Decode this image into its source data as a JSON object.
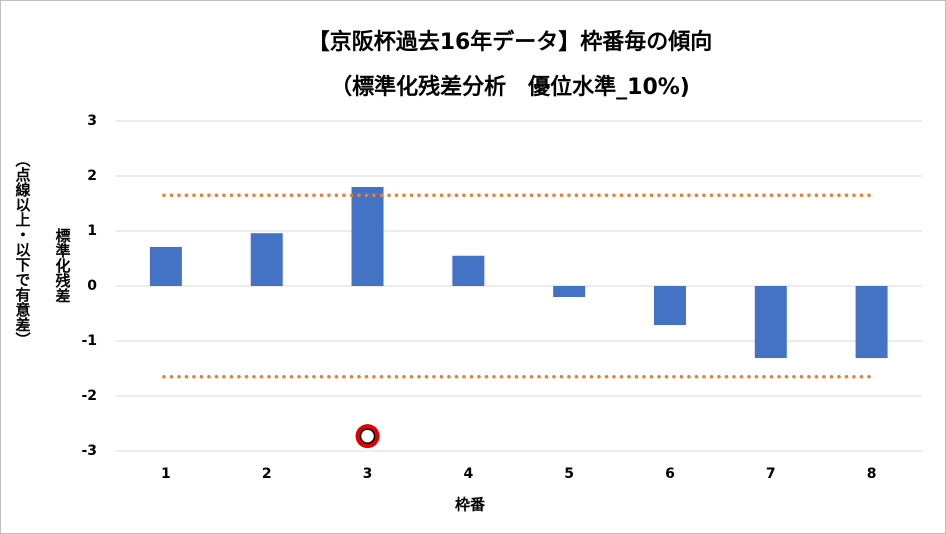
{
  "chart_data": {
    "type": "bar",
    "title": "【京阪杯過去16年データ】枠番毎の傾向",
    "subtitle": "（標準化残差分析　優位水準_10%)",
    "y_label": "標準化残差",
    "y_label_note": "（点線以上・以下で有意差）",
    "x_label": "枠番",
    "categories": [
      "1",
      "2",
      "3",
      "4",
      "5",
      "6",
      "7",
      "8"
    ],
    "values": [
      0.71,
      0.96,
      1.8,
      0.55,
      -0.2,
      -0.71,
      -1.31,
      -1.31
    ],
    "color": "#4472c4",
    "reference_lines": [
      1.65,
      -1.65
    ],
    "reference_color": "#ed7d31",
    "annotation_marker": {
      "category": "3",
      "value": -2.73,
      "color": "#e00000"
    },
    "ylim": [
      -3,
      3
    ],
    "yticks": [
      -3,
      -2,
      -1,
      0,
      1,
      2,
      3
    ],
    "grid": true
  }
}
